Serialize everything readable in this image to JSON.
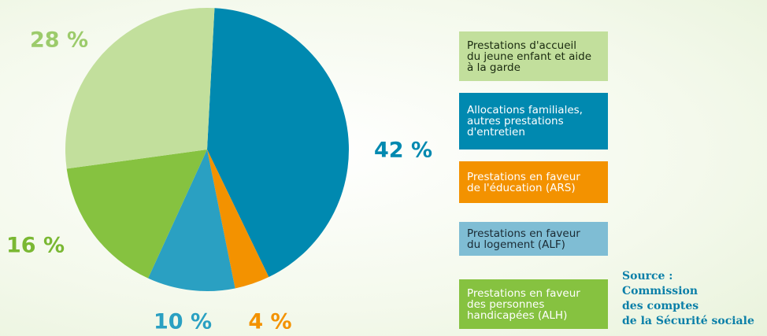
{
  "chart_data": {
    "type": "pie",
    "series": [
      {
        "name": "Allocations familiales,\nautres prestations\nd'entretien",
        "value": 42,
        "value_label": "42 %",
        "color": "#0089b0",
        "legend_color": "#0089b0",
        "text_color": "#ffffff"
      },
      {
        "name": "Prestations en faveur\nde l'éducation (ARS)",
        "value": 4,
        "value_label": "4 %",
        "color": "#f39200",
        "legend_color": "#f39200",
        "text_color": "#ffffff"
      },
      {
        "name": "Prestations en faveur\ndu logement (ALF)",
        "value": 10,
        "value_label": "10 %",
        "color": "#2aa0c2",
        "legend_color": "#7fbdd4",
        "text_color": "#1a2a33"
      },
      {
        "name": "Prestations en faveur\ndes personnes\nhandicapées (ALH)",
        "value": 16,
        "value_label": "16 %",
        "color": "#86c240",
        "legend_color": "#86c240",
        "text_color": "#ffffff"
      },
      {
        "name": "Prestations d'accueil\ndu jeune enfant et aide\nà la garde",
        "value": 28,
        "value_label": "28 %",
        "color": "#c2df9c",
        "legend_color": "#c2df9c",
        "text_color": "#1a2a10"
      }
    ],
    "pct_colors": [
      "#0089b0",
      "#f39200",
      "#2aa0c2",
      "#7ab833",
      "#9ccb6b"
    ],
    "source": "Source :\nCommission\ndes comptes\nde la Sécurité sociale"
  }
}
